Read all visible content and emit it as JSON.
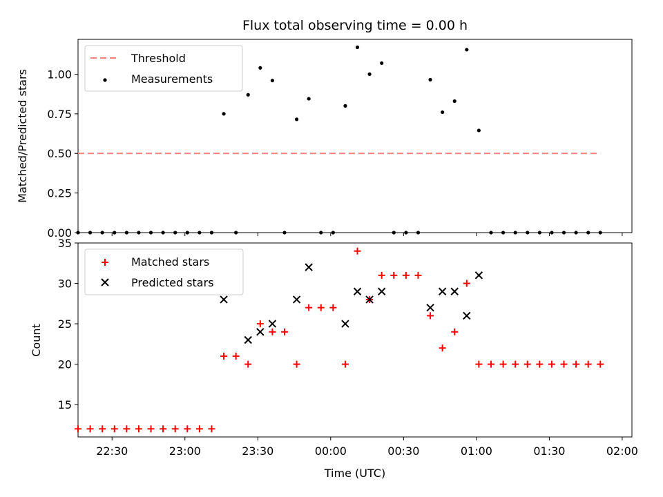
{
  "chart_data": [
    {
      "type": "scatter",
      "title": "Flux total observing time = 0.00 h",
      "xlabel": "",
      "ylabel": "Matched/Predicted stars",
      "xlim": [
        "22:16",
        "02:04"
      ],
      "ylim": [
        0,
        1.22
      ],
      "yticks": [
        0.0,
        0.25,
        0.5,
        0.75,
        1.0
      ],
      "ytick_labels": [
        "0.00",
        "0.25",
        "0.50",
        "0.75",
        "1.00"
      ],
      "legend": {
        "position": "top-left",
        "entries": [
          {
            "label": "Threshold",
            "color": "#ff7f7f",
            "marker": "dashed-line"
          },
          {
            "label": "Measurements",
            "color": "#000000",
            "marker": "dot"
          }
        ]
      },
      "threshold": {
        "value": 0.5,
        "x_start": "22:16",
        "x_end": "01:51",
        "color": "#ff7f7f"
      },
      "series": [
        {
          "name": "Measurements",
          "color": "#000000",
          "x": [
            "22:16",
            "22:21",
            "22:26",
            "22:31",
            "22:36",
            "22:41",
            "22:46",
            "22:51",
            "22:56",
            "23:01",
            "23:06",
            "23:11",
            "23:16",
            "23:21",
            "23:26",
            "23:31",
            "23:36",
            "23:41",
            "23:46",
            "23:51",
            "23:56",
            "00:01",
            "00:06",
            "00:11",
            "00:16",
            "00:21",
            "00:26",
            "00:31",
            "00:36",
            "00:41",
            "00:46",
            "00:51",
            "00:56",
            "01:01",
            "01:06",
            "01:11",
            "01:16",
            "01:21",
            "01:26",
            "01:31",
            "01:36",
            "01:41",
            "01:46",
            "01:51"
          ],
          "y": [
            0,
            0,
            0,
            0,
            0,
            0,
            0,
            0,
            0,
            0,
            0,
            0,
            0.75,
            0,
            0.87,
            1.04,
            0.96,
            0,
            0.715,
            0.845,
            0,
            0,
            0.8,
            1.17,
            1.0,
            1.07,
            0,
            0,
            0,
            0.965,
            0.76,
            0.83,
            1.155,
            0.645,
            0,
            0,
            0,
            0,
            0,
            0,
            0,
            0,
            0,
            0
          ]
        }
      ]
    },
    {
      "type": "scatter",
      "title": "",
      "xlabel": "Time (UTC)",
      "ylabel": "Count",
      "xlim": [
        "22:16",
        "02:04"
      ],
      "ylim": [
        11,
        35
      ],
      "yticks": [
        15,
        20,
        25,
        30,
        35
      ],
      "ytick_labels": [
        "15",
        "20",
        "25",
        "30",
        "35"
      ],
      "xticks": [
        "22:30",
        "23:00",
        "23:30",
        "00:00",
        "00:30",
        "01:00",
        "01:30",
        "02:00"
      ],
      "legend": {
        "position": "top-left",
        "entries": [
          {
            "label": "Matched stars",
            "color": "#ff0000",
            "marker": "plus"
          },
          {
            "label": "Predicted stars",
            "color": "#000000",
            "marker": "x"
          }
        ]
      },
      "series": [
        {
          "name": "Matched stars",
          "color": "#ff0000",
          "x": [
            "22:16",
            "22:21",
            "22:26",
            "22:31",
            "22:36",
            "22:41",
            "22:46",
            "22:51",
            "22:56",
            "23:01",
            "23:06",
            "23:11",
            "23:16",
            "23:21",
            "23:26",
            "23:31",
            "23:36",
            "23:41",
            "23:46",
            "23:51",
            "23:56",
            "00:01",
            "00:06",
            "00:11",
            "00:16",
            "00:21",
            "00:26",
            "00:31",
            "00:36",
            "00:41",
            "00:46",
            "00:51",
            "00:56",
            "01:01",
            "01:06",
            "01:11",
            "01:16",
            "01:21",
            "01:26",
            "01:31",
            "01:36",
            "01:41",
            "01:46",
            "01:51"
          ],
          "y": [
            12,
            12,
            12,
            12,
            12,
            12,
            12,
            12,
            12,
            12,
            12,
            12,
            21,
            21,
            20,
            25,
            24,
            24,
            20,
            27,
            27,
            27,
            20,
            34,
            28,
            31,
            31,
            31,
            31,
            26,
            22,
            24,
            30,
            20,
            20,
            20,
            20,
            20,
            20,
            20,
            20,
            20,
            20,
            20
          ]
        },
        {
          "name": "Predicted stars",
          "color": "#000000",
          "x": [
            "23:16",
            "23:26",
            "23:31",
            "23:36",
            "23:46",
            "23:51",
            "00:06",
            "00:11",
            "00:16",
            "00:21",
            "00:41",
            "00:46",
            "00:51",
            "00:56",
            "01:01"
          ],
          "y": [
            28,
            23,
            24,
            25,
            28,
            32,
            25,
            29,
            28,
            29,
            27,
            29,
            29,
            26,
            31
          ]
        }
      ]
    }
  ]
}
